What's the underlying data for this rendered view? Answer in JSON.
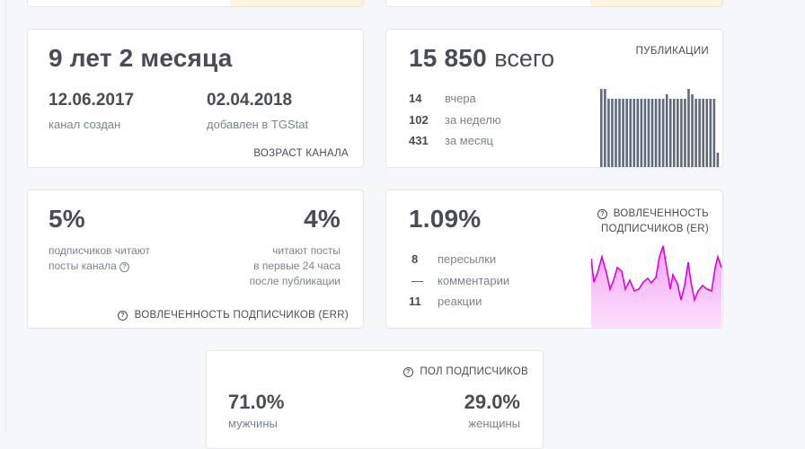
{
  "age_card": {
    "age": "9 лет 2 месяца",
    "created_date": "12.06.2017",
    "created_label": "канал создан",
    "added_date": "02.04.2018",
    "added_label": "добавлен в TGStat",
    "footer": "ВОЗРАСТ КАНАЛА"
  },
  "posts_card": {
    "total_number": "15 850",
    "total_suffix": "всего",
    "header": "ПУБЛИКАЦИИ",
    "rows": [
      {
        "value": "14",
        "label": "вчера"
      },
      {
        "value": "102",
        "label": "за неделю"
      },
      {
        "value": "431",
        "label": "за месяц"
      }
    ],
    "bar_color": "#5f6b7c"
  },
  "err_card": {
    "left_value": "5%",
    "left_line1": "подписчиков читают",
    "left_line2": "посты канала",
    "right_value": "4%",
    "right_line1": "читают посты",
    "right_line2": "в первые 24 часа",
    "right_line3": "после публикации",
    "footer": "ВОВЛЕЧЕННОСТЬ ПОДПИСЧИКОВ (ERR)"
  },
  "er_card": {
    "value": "1.09%",
    "header_line1": "ВОВЛЕЧЕННОСТЬ",
    "header_line2": "ПОДПИСЧИКОВ (ER)",
    "rows": [
      {
        "value": "8",
        "label": "пересылки"
      },
      {
        "value": "—",
        "label": "комментарии"
      },
      {
        "value": "11",
        "label": "реакции"
      }
    ],
    "line_color": "#e000e0"
  },
  "gender_card": {
    "header": "ПОЛ ПОДПИСЧИКОВ",
    "male_value": "71.0%",
    "male_label": "мужчины",
    "female_value": "29.0%",
    "female_label": "женщины"
  }
}
